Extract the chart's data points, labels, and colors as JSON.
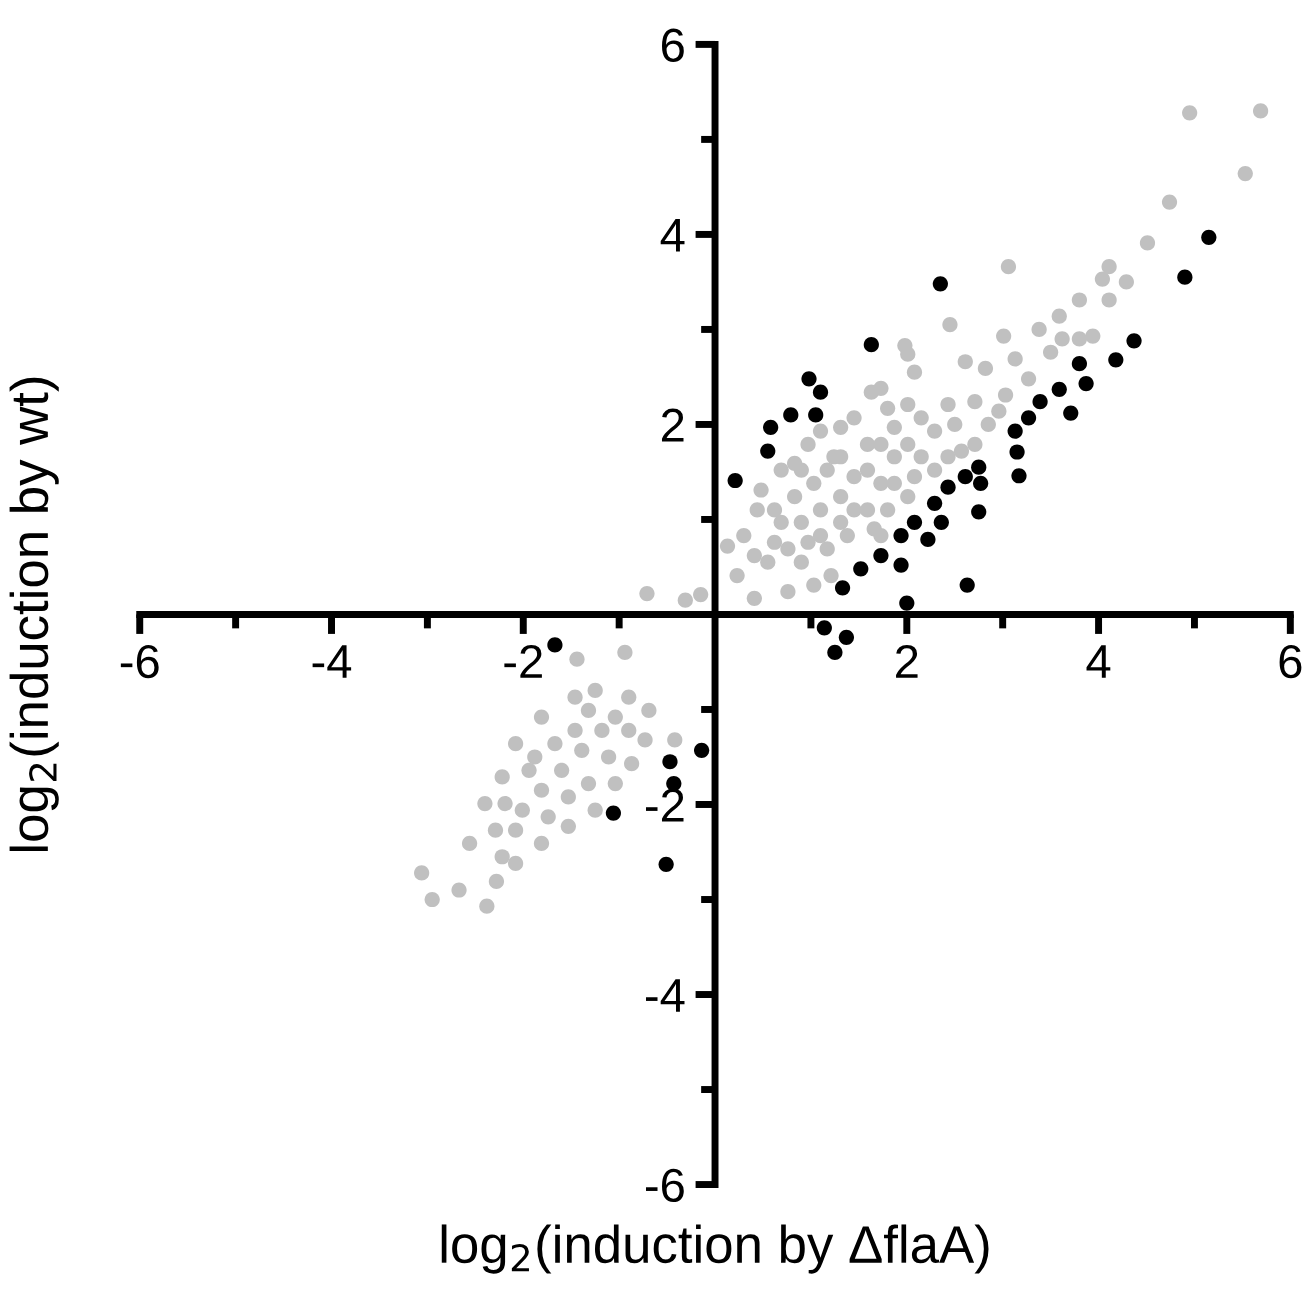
{
  "chart_data": {
    "type": "scatter",
    "xlabel": "log$_{2}$(induction by ΔflaA)",
    "ylabel": "log$_{2}$(induction by wt)",
    "xlim": [
      -6,
      6
    ],
    "ylim": [
      -6,
      6
    ],
    "xticks": [
      -6,
      {
        "value": -5,
        "label": null
      },
      -4,
      {
        "value": -3,
        "label": null
      },
      -2,
      {
        "value": -1,
        "label": null
      },
      {
        "value": 1,
        "label": null
      },
      2,
      {
        "value": 3,
        "label": null
      },
      4,
      {
        "value": 5,
        "label": null
      },
      6
    ],
    "yticks": [
      -6,
      {
        "value": -5,
        "label": null
      },
      -4,
      {
        "value": -3,
        "label": null
      },
      -2,
      {
        "value": -1,
        "label": null
      },
      {
        "value": 1,
        "label": null
      },
      2,
      {
        "value": 3,
        "label": null
      },
      4,
      {
        "value": 5,
        "label": null
      },
      6
    ],
    "grid": false,
    "legend": false,
    "marker": "circle",
    "series": [
      {
        "color": "#c0c0c0",
        "x": [
          -0.71,
          -0.31,
          -0.15,
          0.13,
          4.95,
          5.69,
          5.53,
          4.74,
          4.51,
          3.06,
          4.11,
          4.04,
          4.29,
          4.11,
          3.8,
          3.59,
          3.8,
          3.94,
          3.38,
          3.5,
          3.01,
          2.45,
          1.98,
          2.01,
          2.82,
          2.61,
          3.13,
          3.27,
          3.03,
          2.08,
          1.63,
          1.73,
          2.43,
          2.71,
          2.96,
          2.85,
          2.01,
          1.87,
          1.31,
          0.97,
          0.83,
          0.48,
          0.44,
          0.3,
          0.23,
          0.41,
          0.76,
          1.03,
          1.21,
          1.17,
          0.62,
          0.9,
          1.1,
          1.38,
          1.59,
          1.73,
          1.45,
          1.24,
          1.59,
          1.87,
          2.01,
          2.15,
          2.29,
          2.5,
          2.29,
          2.01,
          1.8,
          1.66,
          1.45,
          1.31,
          1.03,
          0.83,
          0.69,
          0.55,
          0.9,
          1.1,
          1.31,
          0.69,
          1.1,
          1.45,
          1.8,
          2.15,
          2.71,
          2.57,
          2.43,
          1.87,
          1.59,
          1.17,
          0.9,
          0.62,
          0.97,
          1.31,
          1.73,
          2.08,
          1.73,
          0.41,
          0.76,
          3.62,
          -1.44,
          -0.94,
          -3.06,
          -2.95,
          -2.67,
          -2.38,
          -2.28,
          -2.56,
          -2.4,
          -2.22,
          -2.08,
          -1.81,
          -1.46,
          -1.25,
          -0.9,
          -0.69,
          -0.73,
          -0.87,
          -1.04,
          -1.25,
          -1.53,
          -1.81,
          -2.08,
          -2.22,
          -2.29,
          -2.01,
          -1.81,
          -1.6,
          -1.39,
          -1.18,
          -1.04,
          -1.67,
          -1.94,
          -1.32,
          -1.53,
          -1.11,
          -0.9,
          -1.74,
          -2.08,
          -0.42,
          -2.19,
          -1.46,
          -1.88,
          -1.32
        ],
        "values": [
          0.22,
          0.15,
          0.21,
          0.72,
          5.28,
          5.3,
          4.64,
          4.34,
          3.91,
          3.66,
          3.66,
          3.53,
          3.5,
          3.31,
          3.31,
          3.14,
          2.9,
          2.93,
          3.0,
          2.76,
          2.93,
          3.05,
          2.83,
          2.74,
          2.59,
          2.66,
          2.69,
          2.48,
          2.31,
          2.55,
          2.34,
          2.38,
          2.21,
          2.24,
          2.14,
          2.0,
          2.21,
          1.97,
          1.97,
          1.79,
          1.59,
          1.31,
          1.1,
          0.83,
          0.41,
          0.17,
          0.24,
          0.31,
          0.41,
          0.69,
          0.76,
          0.97,
          1.1,
          0.83,
          1.1,
          1.38,
          1.45,
          1.66,
          1.79,
          1.66,
          1.79,
          1.66,
          1.93,
          2.0,
          1.52,
          1.24,
          1.1,
          0.9,
          1.1,
          1.24,
          1.38,
          1.24,
          0.97,
          0.55,
          0.55,
          0.83,
          0.97,
          1.52,
          1.93,
          2.07,
          2.17,
          2.07,
          1.79,
          1.72,
          1.66,
          1.38,
          1.52,
          1.52,
          1.52,
          1.1,
          0.76,
          1.66,
          1.79,
          1.45,
          0.83,
          0.62,
          0.69,
          2.9,
          -0.47,
          -0.4,
          -2.72,
          -3.0,
          -2.9,
          -3.07,
          -2.81,
          -2.41,
          -1.99,
          -1.71,
          -1.36,
          -1.08,
          -0.87,
          -0.8,
          -0.87,
          -1.01,
          -1.32,
          -1.57,
          -1.78,
          -2.06,
          -2.23,
          -2.41,
          -2.62,
          -2.55,
          -2.27,
          -2.06,
          -1.85,
          -1.64,
          -1.43,
          -1.22,
          -1.08,
          -1.36,
          -1.64,
          -1.78,
          -1.92,
          -1.5,
          -1.22,
          -2.13,
          -2.27,
          -1.32,
          -1.99,
          -1.22,
          -1.5,
          -1.01
        ]
      },
      {
        "color": "#000000",
        "x": [
          0.21,
          0.58,
          0.55,
          0.79,
          0.98,
          1.1,
          1.05,
          1.63,
          2.35,
          1.33,
          1.52,
          1.73,
          1.94,
          1.94,
          2.0,
          2.08,
          2.22,
          2.29,
          2.36,
          2.43,
          2.61,
          2.75,
          2.77,
          2.75,
          2.63,
          1.14,
          1.37,
          1.25,
          3.13,
          3.27,
          3.15,
          3.17,
          3.39,
          3.59,
          3.71,
          3.8,
          3.87,
          4.18,
          4.37,
          4.9,
          5.15,
          -1.67,
          -0.14,
          -0.47,
          -0.43,
          -1.06,
          -0.51
        ],
        "values": [
          1.41,
          1.97,
          1.72,
          2.1,
          2.48,
          2.34,
          2.1,
          2.84,
          3.48,
          0.28,
          0.48,
          0.62,
          0.52,
          0.83,
          0.12,
          0.97,
          0.79,
          1.17,
          0.97,
          1.34,
          1.45,
          1.55,
          1.38,
          1.08,
          0.31,
          -0.14,
          -0.24,
          -0.4,
          1.93,
          2.07,
          1.71,
          1.46,
          2.24,
          2.37,
          2.12,
          2.64,
          2.43,
          2.68,
          2.88,
          3.55,
          3.97,
          -0.32,
          -1.43,
          -1.55,
          -1.78,
          -2.09,
          -2.63
        ]
      }
    ]
  }
}
